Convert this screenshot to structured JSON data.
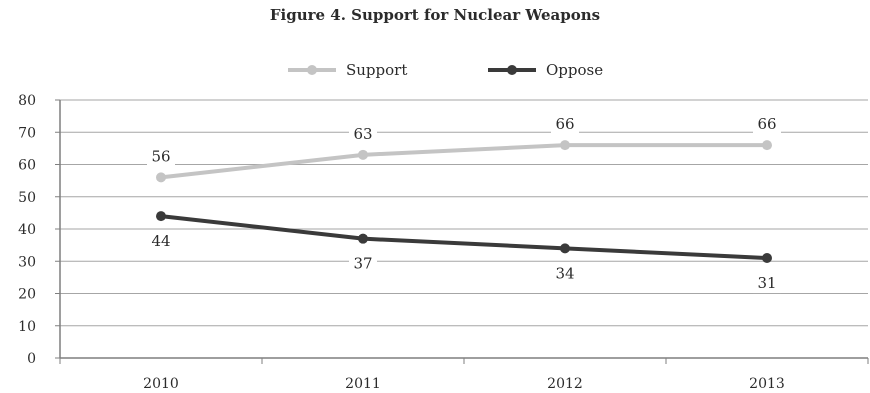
{
  "chart_data": {
    "type": "line",
    "title": "Figure 4. Support for Nuclear Weapons",
    "categories": [
      "2010",
      "2011",
      "2012",
      "2013"
    ],
    "series": [
      {
        "name": "Support",
        "values": [
          56,
          63,
          66,
          66
        ],
        "color": "#c4c4c4"
      },
      {
        "name": "Oppose",
        "values": [
          44,
          37,
          34,
          31
        ],
        "color": "#3a3a3a"
      }
    ],
    "y_ticks": [
      "0",
      "10",
      "20",
      "30",
      "40",
      "50",
      "60",
      "70",
      "80"
    ],
    "ylim": [
      0,
      80
    ],
    "grid": true,
    "legend_position": "top"
  }
}
